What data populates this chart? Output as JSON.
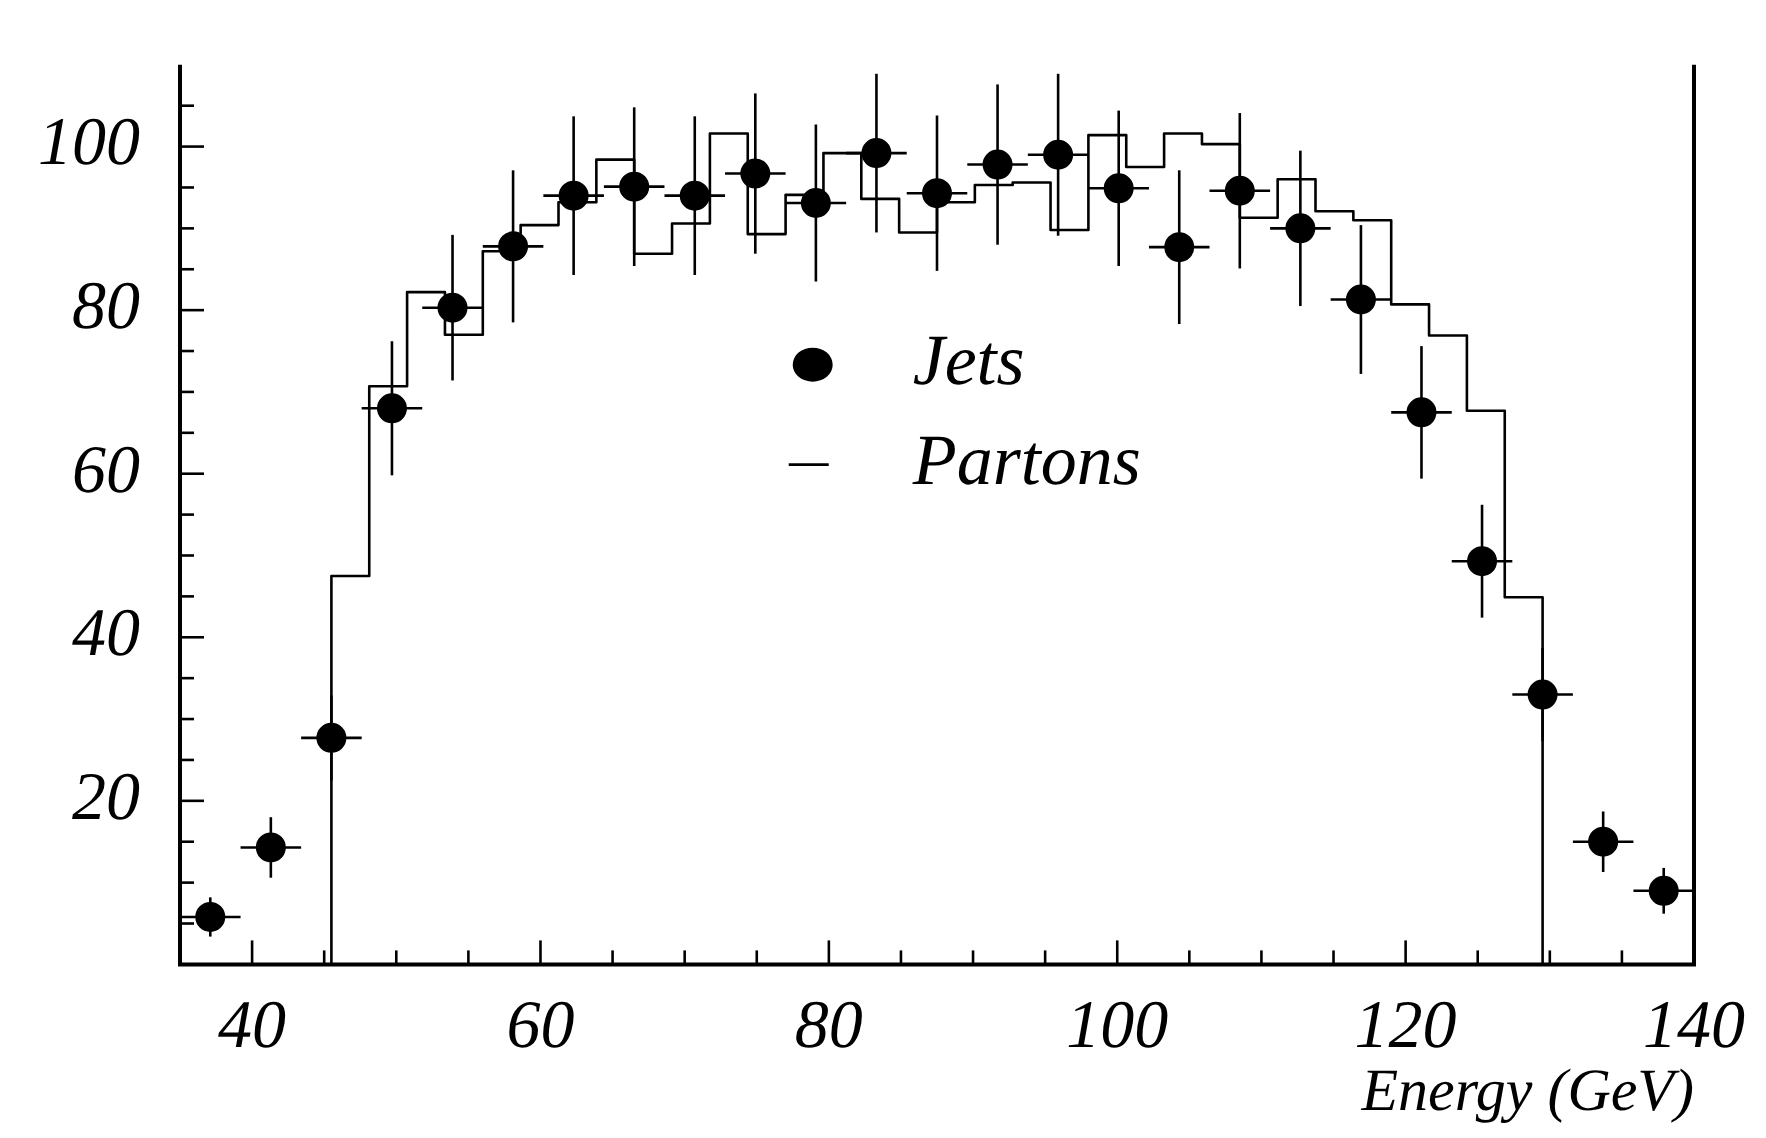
{
  "chart_data": {
    "type": "scatter",
    "xlabel": "Energy (GeV)",
    "xlim": [
      35,
      140
    ],
    "xticks": [
      40,
      {
        "value": 45,
        "label": null
      },
      {
        "value": 50,
        "label": null
      },
      {
        "value": 55,
        "label": null
      },
      60,
      {
        "value": 65,
        "label": null
      },
      {
        "value": 70,
        "label": null
      },
      {
        "value": 75,
        "label": null
      },
      80,
      {
        "value": 85,
        "label": null
      },
      {
        "value": 90,
        "label": null
      },
      {
        "value": 95,
        "label": null
      },
      100,
      {
        "value": 105,
        "label": null
      },
      {
        "value": 110,
        "label": null
      },
      {
        "value": 115,
        "label": null
      },
      120,
      {
        "value": 125,
        "label": null
      },
      {
        "value": 130,
        "label": null
      },
      {
        "value": 135,
        "label": null
      },
      140
    ],
    "ylim": [
      0,
      110
    ],
    "yticks": [
      {
        "value": 5,
        "label": null
      },
      {
        "value": 10,
        "label": null
      },
      {
        "value": 15,
        "label": null
      },
      20,
      {
        "value": 25,
        "label": null
      },
      {
        "value": 30,
        "label": null
      },
      {
        "value": 35,
        "label": null
      },
      40,
      {
        "value": 45,
        "label": null
      },
      {
        "value": 50,
        "label": null
      },
      {
        "value": 55,
        "label": null
      },
      60,
      {
        "value": 65,
        "label": null
      },
      {
        "value": 70,
        "label": null
      },
      {
        "value": 75,
        "label": null
      },
      80,
      {
        "value": 85,
        "label": null
      },
      {
        "value": 90,
        "label": null
      },
      {
        "value": 95,
        "label": null
      },
      100,
      {
        "value": 105,
        "label": null
      }
    ],
    "grid": false,
    "legend": "center",
    "marker": "circle",
    "series": [
      {
        "name": "Jets",
        "color": "#000000",
        "x": [
          37.1,
          41.3,
          45.5,
          49.7,
          53.9,
          58.1,
          62.3,
          66.5,
          70.7,
          74.9,
          79.1,
          83.3,
          87.5,
          91.7,
          95.9,
          100.1,
          104.3,
          108.5,
          112.7,
          116.9,
          121.1,
          125.3,
          129.5,
          133.7,
          137.9
        ],
        "values": [
          5.8,
          14.3,
          27.7,
          68,
          80.3,
          87.8,
          94,
          95.1,
          94,
          96.7,
          93.1,
          99.2,
          94.3,
          97.8,
          99,
          94.9,
          87.7,
          94.6,
          90,
          81.3,
          67.5,
          49.3,
          33,
          15,
          9
        ],
        "errors": [
          2.4,
          3.7,
          5.2,
          8.2,
          8.9,
          9.3,
          9.7,
          9.7,
          9.7,
          9.8,
          9.6,
          9.7,
          9.5,
          9.8,
          9.9,
          9.5,
          9.4,
          9.5,
          9.5,
          9.1,
          8.1,
          6.9,
          5.7,
          3.7,
          2.8
        ],
        "xerrors": [
          2.1,
          2.1,
          2.1,
          2.1,
          2.1,
          2.1,
          2.1,
          2.1,
          2.1,
          2.1,
          2.1,
          2.1,
          2.1,
          2.1,
          2.1,
          2.1,
          2.1,
          2.1,
          2.1,
          2.1,
          2.1,
          2.1,
          2.1,
          2.1,
          2.1
        ]
      },
      {
        "name": "Partons",
        "type": "histogram",
        "color": "#000000",
        "bins": [
          45.5,
          48.125,
          50.75,
          53.375,
          56,
          58.625,
          61.25,
          63.875,
          66.5,
          69.125,
          71.75,
          74.375,
          77,
          79.625,
          82.25,
          84.875,
          87.5,
          90.125,
          92.75,
          95.375,
          98,
          100.625,
          103.25,
          105.875,
          108.5,
          111.125,
          113.75,
          116.375,
          119,
          121.625,
          124.25,
          126.875,
          129.5
        ],
        "values": [
          47.5,
          70.7,
          82.2,
          77,
          87.2,
          90.4,
          93.2,
          98.4,
          86.9,
          90.6,
          101.6,
          89.3,
          94.1,
          99.2,
          93.6,
          89.5,
          93.2,
          95.3,
          95.6,
          89.8,
          101.4,
          97.5,
          101.6,
          100.3,
          91.3,
          96,
          92.1,
          91,
          80.7,
          76.9,
          67.7,
          44.9
        ]
      }
    ]
  }
}
